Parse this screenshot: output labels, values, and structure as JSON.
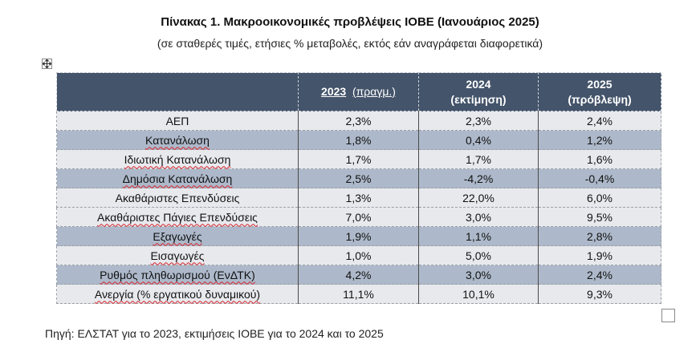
{
  "title": "Πίνακας 1. Μακροοικονομικές προβλέψεις ΙΟΒΕ (Ιανουάριος 2025)",
  "subtitle": "(σε σταθερές τιμές, ετήσιες % μεταβολές, εκτός εάν αναγράφεται διαφορετικά)",
  "table": {
    "headers": [
      {
        "year": "",
        "sub": ""
      },
      {
        "year": "2023",
        "sub": "(πραγμ.)"
      },
      {
        "year": "2024",
        "sub": "(εκτίμηση)"
      },
      {
        "year": "2025",
        "sub": "(πρόβλεψη)"
      }
    ],
    "rows": [
      {
        "label": "ΑΕΠ",
        "v2023": "2,3%",
        "v2024": "2,3%",
        "v2025": "2,4%"
      },
      {
        "label": "Κατανάλωση",
        "v2023": "1,8%",
        "v2024": "0,4%",
        "v2025": "1,2%"
      },
      {
        "label": "Ιδιωτική Κατανάλωση",
        "v2023": "1,7%",
        "v2024": "1,7%",
        "v2025": "1,6%"
      },
      {
        "label": "Δημόσια Κατανάλωση",
        "v2023": "2,5%",
        "v2024": "-4,2%",
        "v2025": "-0,4%"
      },
      {
        "label": "Ακαθάριστες Επενδύσεις",
        "v2023": "1,3%",
        "v2024": "22,0%",
        "v2025": "6,0%"
      },
      {
        "label": "Ακαθάριστες Πάγιες Επενδύσεις",
        "v2023": "7,0%",
        "v2024": "3,0%",
        "v2025": "9,5%"
      },
      {
        "label": "Εξαγωγές",
        "v2023": "1,9%",
        "v2024": "1,1%",
        "v2025": "2,8%"
      },
      {
        "label": "Εισαγωγές",
        "v2023": "1,0%",
        "v2024": "5,0%",
        "v2025": "1,9%"
      },
      {
        "label": "Ρυθμός πληθωρισμού (ΕνΔΤΚ)",
        "v2023": "4,2%",
        "v2024": "3,0%",
        "v2025": "2,4%"
      },
      {
        "label": "Ανεργία (% εργατικού δυναμικού)",
        "v2023": "11,1%",
        "v2024": "10,1%",
        "v2025": "9,3%"
      }
    ]
  },
  "source": "Πηγή: ΕΛΣΤΑΤ για το 2023, εκτιμήσεις ΙΟΒΕ για το 2024 και το 2025",
  "colors": {
    "header_bg": "#44546a",
    "row_light": "#e8e9ed",
    "row_dark": "#adb9ca",
    "spellcheck": "#d8232a"
  },
  "icons": {
    "move_handle": "four-way-arrows-icon",
    "resize_handle": "square-resize-icon"
  }
}
